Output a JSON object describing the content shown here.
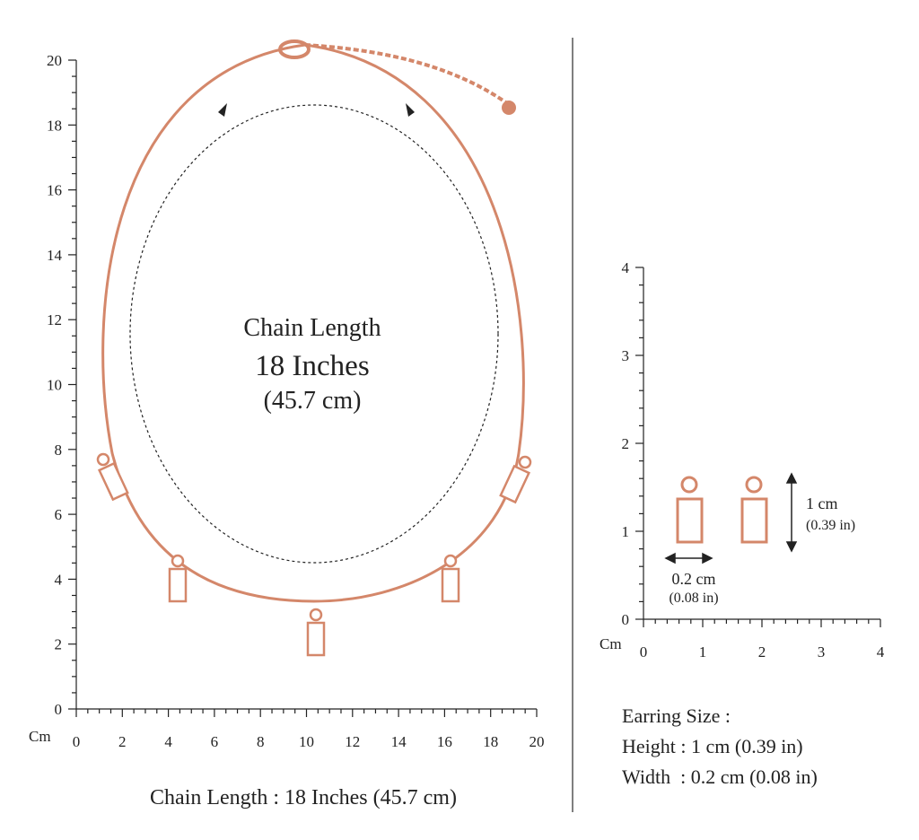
{
  "necklace": {
    "title": "Chain Length",
    "length_in": "18 Inches",
    "length_cm": "(45.7 cm)",
    "caption": "Chain Length : 18 Inches (45.7 cm)",
    "ruler": {
      "unit": "Cm",
      "y_labels": [
        0,
        2,
        4,
        6,
        8,
        10,
        12,
        14,
        16,
        18,
        20
      ],
      "x_labels": [
        0,
        2,
        4,
        6,
        8,
        10,
        12,
        14,
        16,
        18,
        20
      ]
    }
  },
  "earring": {
    "height_label": "1 cm",
    "height_in": "(0.39 in)",
    "width_label": "0.2 cm",
    "width_in": "(0.08 in)",
    "size_title": "Earring Size :",
    "height_line": "Height : 1 cm (0.39 in)",
    "width_line": "Width  : 0.2 cm (0.08 in)",
    "ruler": {
      "unit": "Cm",
      "y_labels": [
        0,
        1,
        2,
        3,
        4
      ],
      "x_labels": [
        0,
        1,
        2,
        3,
        4
      ]
    }
  }
}
